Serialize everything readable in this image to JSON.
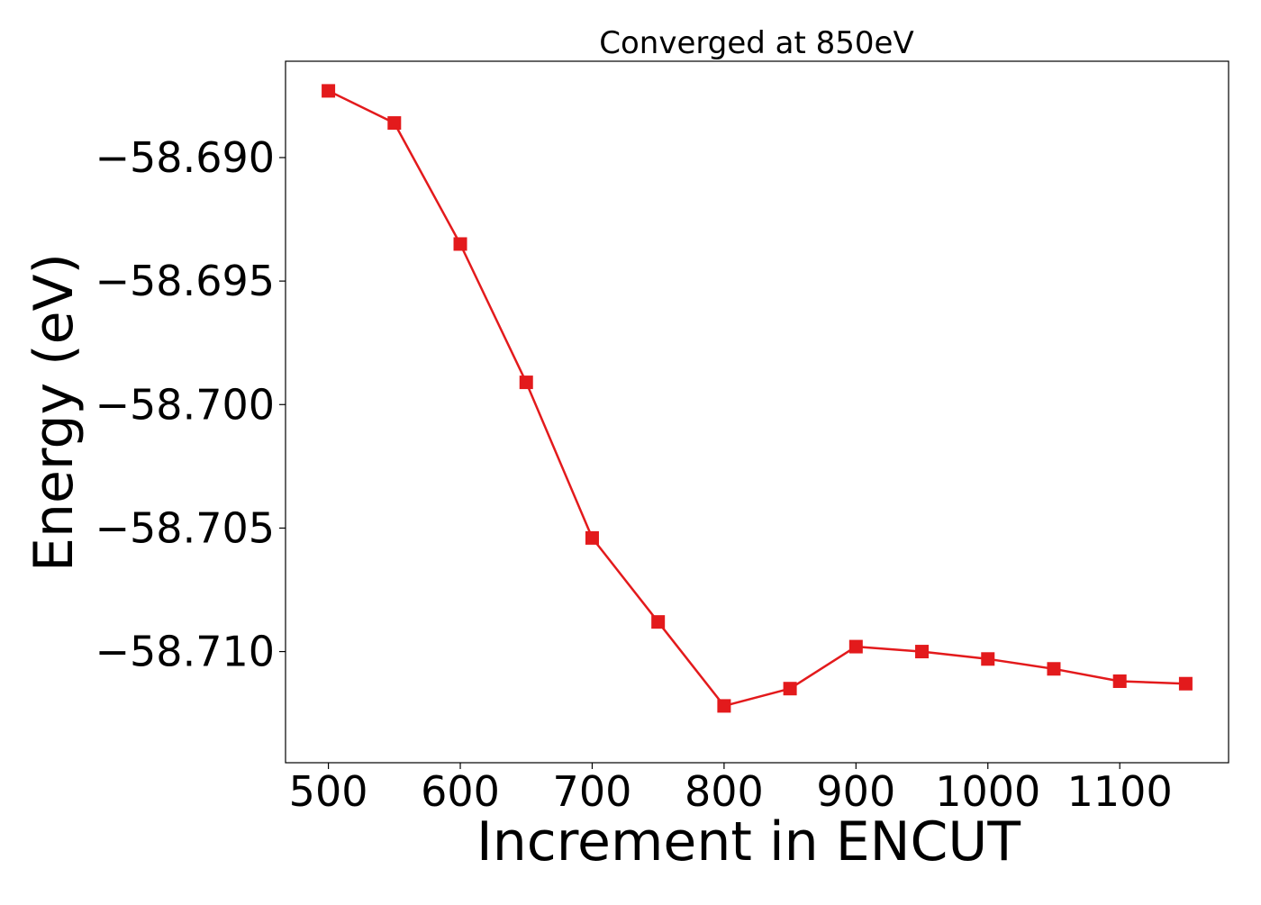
{
  "chart_data": {
    "type": "line",
    "title": "Converged at 850eV",
    "xlabel": "Increment in ENCUT",
    "ylabel": "Energy (eV)",
    "x": [
      500,
      550,
      600,
      650,
      700,
      750,
      800,
      850,
      900,
      950,
      1000,
      1050,
      1100,
      1150
    ],
    "series": [
      {
        "values": [
          -58.6873,
          -58.6886,
          -58.6935,
          -58.6991,
          -58.7054,
          -58.7088,
          -58.7122,
          -58.7115,
          -58.7098,
          -58.71,
          -58.7103,
          -58.7107,
          -58.7112,
          -58.7113
        ],
        "color": "#e31a1c",
        "marker": "square"
      }
    ],
    "xlim": [
      467.5,
      1182.5
    ],
    "ylim": [
      -58.7145,
      -58.6861
    ],
    "xticks": [
      500,
      600,
      700,
      800,
      900,
      1000,
      1100
    ],
    "xtick_labels": [
      "500",
      "600",
      "700",
      "800",
      "900",
      "1000",
      "1100"
    ],
    "yticks": [
      -58.69,
      -58.695,
      -58.7,
      -58.705,
      -58.71
    ],
    "ytick_labels": [
      "−58.690",
      "−58.695",
      "−58.700",
      "−58.705",
      "−58.710"
    ],
    "grid": false,
    "legend": false
  }
}
